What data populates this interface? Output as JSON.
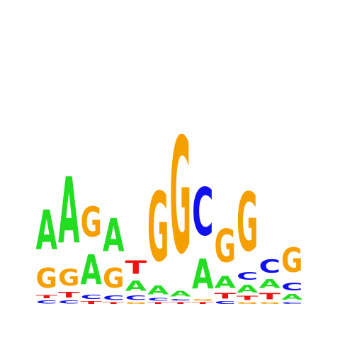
{
  "logo": {
    "alphabet": [
      "A",
      "C",
      "G",
      "T"
    ],
    "colors": {
      "A": "#22dd22",
      "C": "#1111ee",
      "G": "#f5a000",
      "T": "#ee1111"
    },
    "max_bits": 2,
    "positions": [
      [
        {
          "l": "C",
          "h": 0.05
        },
        {
          "l": "T",
          "h": 0.05
        },
        {
          "l": "G",
          "h": 0.3
        },
        {
          "l": "A",
          "h": 0.6
        }
      ],
      [
        {
          "l": "C",
          "h": 0.05
        },
        {
          "l": "T",
          "h": 0.08
        },
        {
          "l": "G",
          "h": 0.25
        },
        {
          "l": "A",
          "h": 1.0
        }
      ],
      [
        {
          "l": "T",
          "h": 0.04
        },
        {
          "l": "C",
          "h": 0.06
        },
        {
          "l": "A",
          "h": 0.45
        },
        {
          "l": "G",
          "h": 0.45
        }
      ],
      [
        {
          "l": "T",
          "h": 0.03
        },
        {
          "l": "C",
          "h": 0.07
        },
        {
          "l": "G",
          "h": 0.3
        },
        {
          "l": "A",
          "h": 0.5
        }
      ],
      [
        {
          "l": "G",
          "h": 0.03
        },
        {
          "l": "C",
          "h": 0.07
        },
        {
          "l": "A",
          "h": 0.15
        },
        {
          "l": "T",
          "h": 0.2
        }
      ],
      [
        {
          "l": "T",
          "h": 0.03
        },
        {
          "l": "C",
          "h": 0.04
        },
        {
          "l": "A",
          "h": 0.13
        },
        {
          "l": "G",
          "h": 1.05
        }
      ],
      [
        {
          "l": "T",
          "h": 0.03
        },
        {
          "l": "C",
          "h": 0.03
        },
        {
          "l": "A",
          "h": 0.08
        },
        {
          "l": "G",
          "h": 1.75
        }
      ],
      [
        {
          "l": "T",
          "h": 0.03
        },
        {
          "l": "G",
          "h": 0.03
        },
        {
          "l": "A",
          "h": 0.45
        },
        {
          "l": "C",
          "h": 0.72
        }
      ],
      [
        {
          "l": "C",
          "h": 0.04
        },
        {
          "l": "T",
          "h": 0.08
        },
        {
          "l": "A",
          "h": 0.18
        },
        {
          "l": "G",
          "h": 0.5
        }
      ],
      [
        {
          "l": "G",
          "h": 0.03
        },
        {
          "l": "T",
          "h": 0.06
        },
        {
          "l": "A",
          "h": 0.12
        },
        {
          "l": "C",
          "h": 0.12
        },
        {
          "l": "G",
          "h": 0.88
        }
      ],
      [
        {
          "l": "G",
          "h": 0.03
        },
        {
          "l": "T",
          "h": 0.1
        },
        {
          "l": "A",
          "h": 0.13
        },
        {
          "l": "C",
          "h": 0.2
        }
      ],
      [
        {
          "l": "C",
          "h": 0.03
        },
        {
          "l": "A",
          "h": 0.08
        },
        {
          "l": "C",
          "h": 0.12
        },
        {
          "l": "G",
          "h": 0.37
        }
      ]
    ]
  }
}
